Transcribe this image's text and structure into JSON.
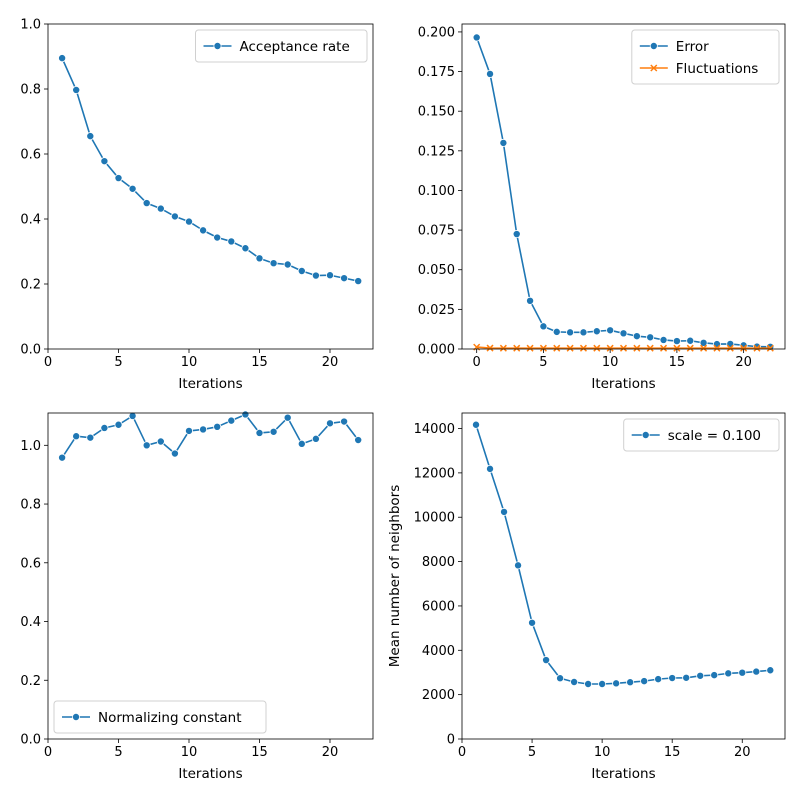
{
  "colors": {
    "blue": "#1f77b4",
    "orange": "#ff7f0e"
  },
  "chart_data": [
    {
      "type": "line",
      "id": "acceptance",
      "xlabel": "Iterations",
      "ylabel": "",
      "xlim": [
        0,
        23.05
      ],
      "ylim": [
        0,
        1.0
      ],
      "xticks": [
        0,
        5,
        10,
        15,
        20
      ],
      "xtick_labels": [
        "0",
        "5",
        "10",
        "15",
        "20"
      ],
      "yticks": [
        0,
        0.2,
        0.4,
        0.6,
        0.8,
        1.0
      ],
      "ytick_labels": [
        "0.0",
        "0.2",
        "0.4",
        "0.6",
        "0.8",
        "1.0"
      ],
      "legend_position": "upper right",
      "series": [
        {
          "name": "Acceptance rate",
          "marker": "circle",
          "x": [
            1,
            2,
            3,
            4,
            5,
            6,
            7,
            8,
            9,
            10,
            11,
            12,
            13,
            14,
            15,
            16,
            17,
            18,
            19,
            20,
            21,
            22
          ],
          "values": [
            0.895,
            0.797,
            0.655,
            0.578,
            0.526,
            0.493,
            0.449,
            0.432,
            0.408,
            0.392,
            0.365,
            0.343,
            0.331,
            0.31,
            0.279,
            0.264,
            0.26,
            0.24,
            0.226,
            0.227,
            0.218,
            0.209
          ]
        }
      ]
    },
    {
      "type": "line",
      "id": "error",
      "xlabel": "Iterations",
      "ylabel": "",
      "xlim": [
        -1.1,
        23.1
      ],
      "ylim": [
        0,
        0.205
      ],
      "xticks": [
        0,
        5,
        10,
        15,
        20
      ],
      "xtick_labels": [
        "0",
        "5",
        "10",
        "15",
        "20"
      ],
      "yticks": [
        0,
        0.025,
        0.05,
        0.075,
        0.1,
        0.125,
        0.15,
        0.175,
        0.2
      ],
      "ytick_labels": [
        "0.000",
        "0.025",
        "0.050",
        "0.075",
        "0.100",
        "0.125",
        "0.150",
        "0.175",
        "0.200"
      ],
      "legend_position": "upper right",
      "series": [
        {
          "name": "Error",
          "marker": "circle",
          "x": [
            0,
            1,
            2,
            3,
            4,
            5,
            6,
            7,
            8,
            9,
            10,
            11,
            12,
            13,
            14,
            15,
            16,
            17,
            18,
            19,
            20,
            21,
            22
          ],
          "values": [
            0.1965,
            0.1735,
            0.13,
            0.0725,
            0.0304,
            0.0143,
            0.0108,
            0.0105,
            0.0105,
            0.0112,
            0.0118,
            0.0099,
            0.0081,
            0.0074,
            0.0057,
            0.005,
            0.0052,
            0.0039,
            0.0031,
            0.0032,
            0.0023,
            0.0015,
            0.0014
          ]
        },
        {
          "name": "Fluctuations",
          "marker": "x",
          "x": [
            0,
            1,
            2,
            3,
            4,
            5,
            6,
            7,
            8,
            9,
            10,
            11,
            12,
            13,
            14,
            15,
            16,
            17,
            18,
            19,
            20,
            21,
            22
          ],
          "values": [
            0.0012,
            0.0006,
            0.0005,
            0.0005,
            0.0005,
            0.0005,
            0.0005,
            0.0005,
            0.0005,
            0.0005,
            0.0005,
            0.0005,
            0.0005,
            0.0005,
            0.0005,
            0.0005,
            0.0005,
            0.0005,
            0.0005,
            0.0005,
            0.0005,
            0.0005,
            0.0005
          ]
        }
      ]
    },
    {
      "type": "line",
      "id": "normalizing",
      "xlabel": "Iterations",
      "ylabel": "",
      "xlim": [
        0,
        23.05
      ],
      "ylim": [
        0,
        1.11
      ],
      "xticks": [
        0,
        5,
        10,
        15,
        20
      ],
      "xtick_labels": [
        "0",
        "5",
        "10",
        "15",
        "20"
      ],
      "yticks": [
        0,
        0.2,
        0.4,
        0.6,
        0.8,
        1.0
      ],
      "ytick_labels": [
        "0.0",
        "0.2",
        "0.4",
        "0.6",
        "0.8",
        "1.0"
      ],
      "legend_position": "lower left",
      "series": [
        {
          "name": "Normalizing constant",
          "marker": "circle",
          "x": [
            1,
            2,
            3,
            4,
            5,
            6,
            7,
            8,
            9,
            10,
            11,
            12,
            13,
            14,
            15,
            16,
            17,
            18,
            19,
            20,
            21,
            22
          ],
          "values": [
            0.958,
            1.031,
            1.026,
            1.059,
            1.07,
            1.1,
            1.0,
            1.013,
            0.972,
            1.049,
            1.054,
            1.063,
            1.084,
            1.105,
            1.042,
            1.046,
            1.094,
            1.005,
            1.022,
            1.075,
            1.081,
            1.018
          ]
        }
      ]
    },
    {
      "type": "line",
      "id": "neighbors",
      "xlabel": "Iterations",
      "ylabel": "Mean number of neighbors",
      "xlim": [
        0,
        23.05
      ],
      "ylim": [
        0,
        14700
      ],
      "xticks": [
        0,
        5,
        10,
        15,
        20
      ],
      "xtick_labels": [
        "0",
        "5",
        "10",
        "15",
        "20"
      ],
      "yticks": [
        0,
        2000,
        4000,
        6000,
        8000,
        10000,
        12000,
        14000
      ],
      "ytick_labels": [
        "0",
        "2000",
        "4000",
        "6000",
        "8000",
        "10000",
        "12000",
        "14000"
      ],
      "legend_position": "upper right",
      "series": [
        {
          "name": "scale = 0.100",
          "marker": "circle",
          "x": [
            1,
            2,
            3,
            4,
            5,
            6,
            7,
            8,
            9,
            10,
            11,
            12,
            13,
            14,
            15,
            16,
            17,
            18,
            19,
            20,
            21,
            22
          ],
          "values": [
            14170,
            12180,
            10240,
            7830,
            5240,
            3560,
            2740,
            2570,
            2480,
            2480,
            2510,
            2560,
            2610,
            2700,
            2750,
            2760,
            2850,
            2880,
            2960,
            2990,
            3040,
            3100
          ]
        }
      ]
    }
  ]
}
